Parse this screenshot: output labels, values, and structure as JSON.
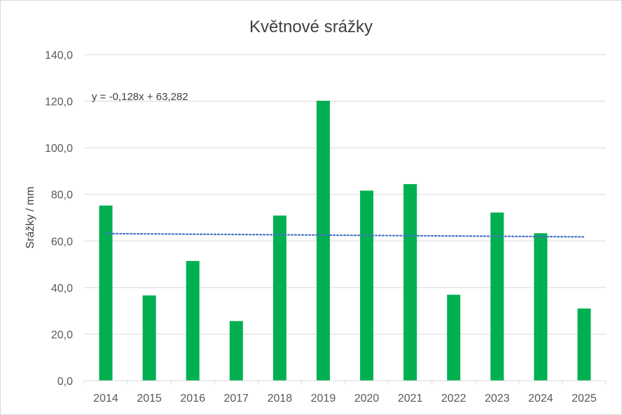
{
  "chart_data": {
    "type": "bar",
    "title": "Květnové srážky",
    "xlabel": "",
    "ylabel": "Srážky / mm",
    "categories": [
      "2014",
      "2015",
      "2016",
      "2017",
      "2018",
      "2019",
      "2020",
      "2021",
      "2022",
      "2023",
      "2024",
      "2025"
    ],
    "values": [
      75.2,
      36.6,
      51.4,
      25.6,
      70.9,
      120.2,
      81.6,
      84.4,
      36.9,
      72.2,
      63.3,
      31.0
    ],
    "ylim": [
      0,
      140
    ],
    "yticks": [
      "0,0",
      "20,0",
      "40,0",
      "60,0",
      "80,0",
      "100,0",
      "120,0",
      "140,0"
    ],
    "bar_color": "#00b050",
    "grid": true,
    "legend": "none",
    "trendline": {
      "kind": "linear",
      "style": "dotted",
      "color": "#4472c4",
      "slope": -0.128,
      "intercept": 63.282,
      "equation": "y = -0,128x + 63,282"
    }
  }
}
